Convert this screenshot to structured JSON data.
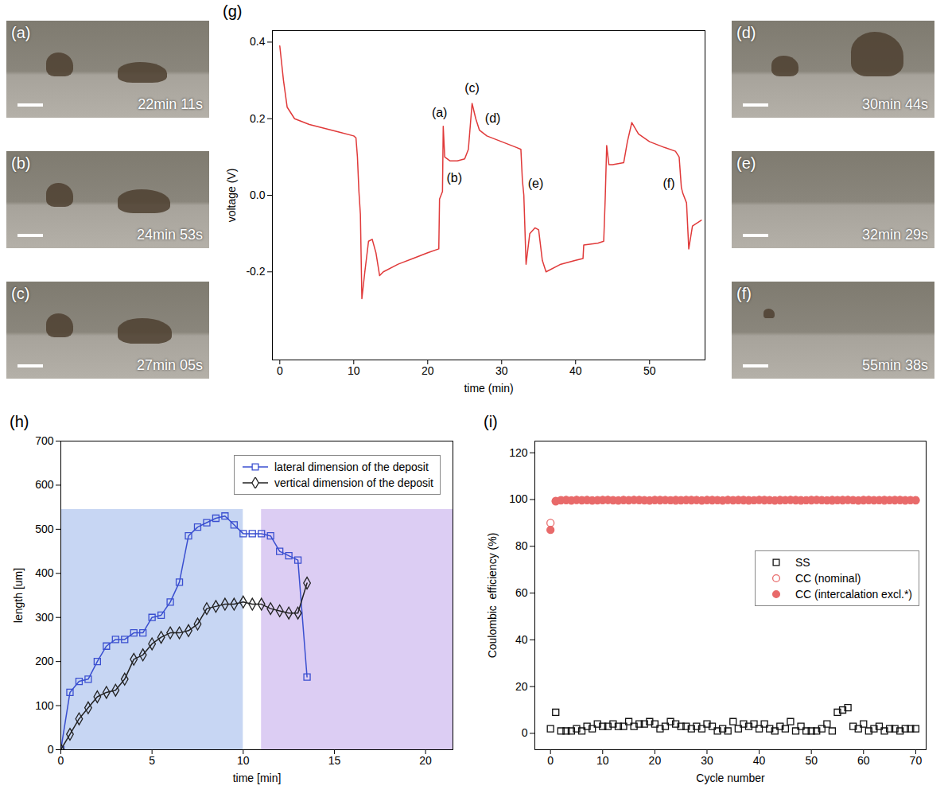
{
  "images": [
    {
      "label": "(a)",
      "time": "22min 11s"
    },
    {
      "label": "(b)",
      "time": "24min 53s"
    },
    {
      "label": "(c)",
      "time": "27min 05s"
    },
    {
      "label": "(d)",
      "time": "30min 44s"
    },
    {
      "label": "(e)",
      "time": "32min 29s"
    },
    {
      "label": "(f)",
      "time": "55min 38s"
    }
  ],
  "chart_data": [
    {
      "type": "line",
      "title": "(g)",
      "x_label": "time (min)",
      "y_label": "voltage (V)",
      "xlim": [
        -1,
        57.5
      ],
      "ylim": [
        -0.43,
        0.43
      ],
      "xticks": [
        0,
        10,
        20,
        30,
        40,
        50
      ],
      "yticks": [
        -0.2,
        {
          "value": 0,
          "label": "0.0"
        },
        0.2,
        0.4
      ],
      "grid": false,
      "x": [
        0,
        0.5,
        1,
        2,
        4,
        6,
        8,
        10,
        10.3,
        10.5,
        10.7,
        10.9,
        11.1,
        11.5,
        12,
        12.5,
        13,
        13.5,
        14,
        16,
        18,
        20,
        21.5,
        21.6,
        21.8,
        22,
        22.1,
        22.3,
        23,
        24,
        25,
        25.5,
        26,
        26.5,
        27,
        28,
        30,
        32,
        32.6,
        32.8,
        33,
        33.3,
        33.8,
        34.5,
        35,
        35.5,
        36,
        38,
        40,
        41,
        41.1,
        43,
        43.8,
        44,
        44.2,
        44.5,
        45,
        46.5,
        47,
        47.6,
        48.5,
        50,
        52,
        53.5,
        54,
        54.3,
        54.5,
        55,
        55.3,
        55.8,
        57
      ],
      "series": [
        {
          "name": "voltage",
          "color": "#e03a3a",
          "line_style": "solid",
          "values": [
            0.39,
            0.3,
            0.23,
            0.2,
            0.185,
            0.175,
            0.165,
            0.155,
            0.15,
            0.1,
            0.01,
            -0.05,
            -0.27,
            -0.2,
            -0.12,
            -0.115,
            -0.15,
            -0.21,
            -0.2,
            -0.18,
            -0.165,
            -0.15,
            -0.14,
            -0.01,
            0,
            0.01,
            0.18,
            0.1,
            0.09,
            0.09,
            0.095,
            0.12,
            0.24,
            0.2,
            0.17,
            0.155,
            0.14,
            0.125,
            0.12,
            0.04,
            0,
            -0.18,
            -0.1,
            -0.085,
            -0.09,
            -0.17,
            -0.2,
            -0.18,
            -0.17,
            -0.165,
            -0.13,
            -0.125,
            -0.12,
            -0.01,
            0.13,
            0.08,
            0.08,
            0.085,
            0.14,
            0.19,
            0.16,
            0.14,
            0.125,
            0.115,
            0.1,
            0.02,
            0.005,
            -0.02,
            -0.14,
            -0.08,
            -0.065
          ]
        }
      ],
      "annotations": [
        {
          "text": "(a)",
          "x": 21.6,
          "y": 0.215
        },
        {
          "text": "(b)",
          "x": 23.6,
          "y": 0.045
        },
        {
          "text": "(c)",
          "x": 26,
          "y": 0.28
        },
        {
          "text": "(d)",
          "x": 28.8,
          "y": 0.2
        },
        {
          "text": "(e)",
          "x": 34.6,
          "y": 0.03
        },
        {
          "text": "(f)",
          "x": 52.6,
          "y": 0.03
        }
      ]
    },
    {
      "type": "line",
      "title": "(h)",
      "x_label": "time [min]",
      "y_label": "length [um]",
      "xlim": [
        0,
        21.5
      ],
      "ylim": [
        0,
        700
      ],
      "xticks": [
        0,
        5,
        10,
        15,
        20
      ],
      "yticks": [
        0,
        100,
        200,
        300,
        400,
        500,
        600,
        700
      ],
      "grid": false,
      "legend": "top-right",
      "shaded_regions": [
        {
          "x1": 0,
          "x2": 10,
          "y1": 0,
          "y2": 545,
          "color": "#c7d6f3"
        },
        {
          "x1": 11,
          "x2": 21.5,
          "y1": 0,
          "y2": 545,
          "color": "#dccdf3"
        }
      ],
      "x": [
        0,
        0.5,
        1,
        1.5,
        2,
        2.5,
        3,
        3.5,
        4,
        4.5,
        5,
        5.5,
        6,
        6.5,
        7,
        7.5,
        8,
        8.5,
        9,
        9.5,
        10,
        10.5,
        11,
        11.5,
        12,
        12.5,
        13,
        13.5
      ],
      "series": [
        {
          "name": "lateral dimension of the deposit",
          "color": "#3a4fd0",
          "marker": "square-open",
          "line_style": "solid",
          "values": [
            0,
            130,
            155,
            160,
            200,
            235,
            250,
            250,
            265,
            265,
            300,
            305,
            335,
            380,
            485,
            505,
            515,
            525,
            530,
            510,
            490,
            490,
            490,
            485,
            450,
            440,
            430,
            165
          ]
        },
        {
          "name": "vertical dimension of the deposit",
          "color": "#222222",
          "marker": "diamond-open",
          "line_style": "solid",
          "values": [
            0,
            35,
            70,
            95,
            120,
            130,
            135,
            160,
            205,
            215,
            240,
            255,
            265,
            265,
            270,
            285,
            320,
            325,
            330,
            330,
            335,
            330,
            330,
            320,
            315,
            310,
            310,
            378
          ]
        }
      ]
    },
    {
      "type": "scatter",
      "title": "(i)",
      "x_label": "Cycle number",
      "y_label": "Coulombic  efficiency (%)",
      "xlim": [
        -3,
        72
      ],
      "ylim": [
        -7,
        125
      ],
      "xticks": [
        0,
        10,
        20,
        30,
        40,
        50,
        60,
        70
      ],
      "yticks": [
        0,
        20,
        40,
        60,
        80,
        100,
        120
      ],
      "grid": false,
      "legend": "right",
      "x": [
        0,
        1,
        2,
        3,
        4,
        5,
        6,
        7,
        8,
        9,
        10,
        11,
        12,
        13,
        14,
        15,
        16,
        17,
        18,
        19,
        20,
        21,
        22,
        23,
        24,
        25,
        26,
        27,
        28,
        29,
        30,
        31,
        32,
        33,
        34,
        35,
        36,
        37,
        38,
        39,
        40,
        41,
        42,
        43,
        44,
        45,
        46,
        47,
        48,
        49,
        50,
        51,
        52,
        53,
        54,
        55,
        56,
        57,
        58,
        59,
        60,
        61,
        62,
        63,
        64,
        65,
        66,
        67,
        68,
        69,
        70
      ],
      "series": [
        {
          "name": "SS",
          "color": "#111111",
          "marker": "square-open",
          "values": [
            2,
            9,
            1,
            1,
            1,
            2,
            1,
            3,
            2,
            4,
            3,
            3,
            4,
            3,
            3,
            5,
            3,
            4,
            4,
            5,
            4,
            2,
            3,
            5,
            4,
            3,
            3,
            2,
            3,
            2,
            4,
            3,
            1,
            2,
            1,
            5,
            2,
            4,
            3,
            4,
            2,
            4,
            2,
            1,
            3,
            2,
            5,
            1,
            3,
            1,
            1,
            1,
            2,
            4,
            1,
            9,
            10,
            11,
            3,
            2,
            4,
            1,
            2,
            3,
            1,
            2,
            2,
            1,
            2,
            2,
            2
          ]
        },
        {
          "name": "CC (nominal)",
          "color": "#e86a6a",
          "marker": "circle-open",
          "values": [
            90,
            99.2,
            99.6,
            99.7,
            99.5,
            99.8,
            99.6,
            99.7,
            99.5,
            99.6,
            99.7,
            99.8,
            99.6,
            99.5,
            99.7,
            99.6,
            99.8,
            99.7,
            99.6,
            99.5,
            99.7,
            99.6,
            99.8,
            99.7,
            99.5,
            99.6,
            99.7,
            99.6,
            99.8,
            99.5,
            99.7,
            99.6,
            99.7,
            99.5,
            99.8,
            99.6,
            99.7,
            99.6,
            99.5,
            99.7,
            99.8,
            99.6,
            99.7,
            99.5,
            99.6,
            99.7,
            99.8,
            99.6,
            99.5,
            99.7,
            99.6,
            99.8,
            99.7,
            99.6,
            99.5,
            99.7,
            99.6,
            99.8,
            99.7,
            99.5,
            99.6,
            99.7,
            99.6,
            99.8,
            99.5,
            99.7,
            99.6,
            99.7,
            99.5,
            99.8,
            99.6
          ]
        },
        {
          "name": "CC (intercalation excl.*)",
          "color": "#e86a6a",
          "marker": "circle",
          "values": [
            87,
            99.4,
            99.8,
            99.9,
            99.7,
            99.9,
            99.8,
            99.9,
            99.7,
            99.8,
            99.9,
            99.9,
            99.8,
            99.7,
            99.9,
            99.8,
            99.9,
            99.9,
            99.8,
            99.7,
            99.9,
            99.9,
            99.8,
            99.7,
            99.9,
            99.8,
            99.9,
            99.9,
            99.8,
            99.7,
            99.9,
            99.9,
            99.8,
            99.7,
            99.9,
            99.8,
            99.9,
            99.9,
            99.8,
            99.7,
            99.9,
            99.9,
            99.8,
            99.7,
            99.9,
            99.8,
            99.9,
            99.9,
            99.8,
            99.7,
            99.9,
            99.9,
            99.8,
            99.7,
            99.9,
            99.8,
            99.9,
            99.9,
            99.8,
            99.7,
            99.9,
            99.9,
            99.8,
            99.7,
            99.9,
            99.8,
            99.9,
            99.9,
            99.8,
            99.7,
            99.8
          ]
        }
      ]
    }
  ]
}
